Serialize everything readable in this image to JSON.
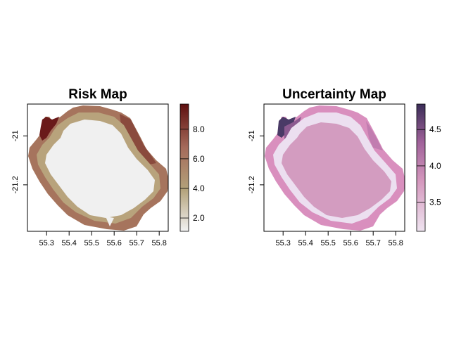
{
  "panels": [
    {
      "title": "Risk Map",
      "variable": "risk",
      "x_ticks": [
        "55.3",
        "55.4",
        "55.5",
        "55.6",
        "55.7",
        "55.8"
      ],
      "y_ticks": [
        "-21",
        "-21.2"
      ],
      "legend": {
        "min": 1.1,
        "max": 9.7,
        "ticks": [
          "2.0",
          "4.0",
          "6.0",
          "8.0"
        ],
        "tick_values": [
          2.0,
          4.0,
          6.0,
          8.0
        ],
        "colors": [
          "#f2f2f2",
          "#b3a27a",
          "#a56a5a",
          "#5e0f0f"
        ]
      }
    },
    {
      "title": "Uncertainty Map",
      "variable": "uncertainty",
      "x_ticks": [
        "55.3",
        "55.4",
        "55.5",
        "55.6",
        "55.7",
        "55.8"
      ],
      "y_ticks": [
        "-21",
        "-21.2"
      ],
      "legend": {
        "min": 3.1,
        "max": 4.85,
        "ticks": [
          "3.5",
          "4.0",
          "4.5"
        ],
        "tick_values": [
          3.5,
          4.0,
          4.5
        ],
        "colors": [
          "#efe4f0",
          "#d497bd",
          "#a0629a",
          "#3a2d57"
        ]
      }
    }
  ],
  "geo": {
    "xlim": [
      55.215,
      55.84
    ],
    "ylim": [
      -21.39,
      -20.87
    ],
    "x_tick_values": [
      55.3,
      55.4,
      55.5,
      55.6,
      55.7,
      55.8
    ],
    "y_tick_values": [
      -21.0,
      -21.2
    ]
  }
}
